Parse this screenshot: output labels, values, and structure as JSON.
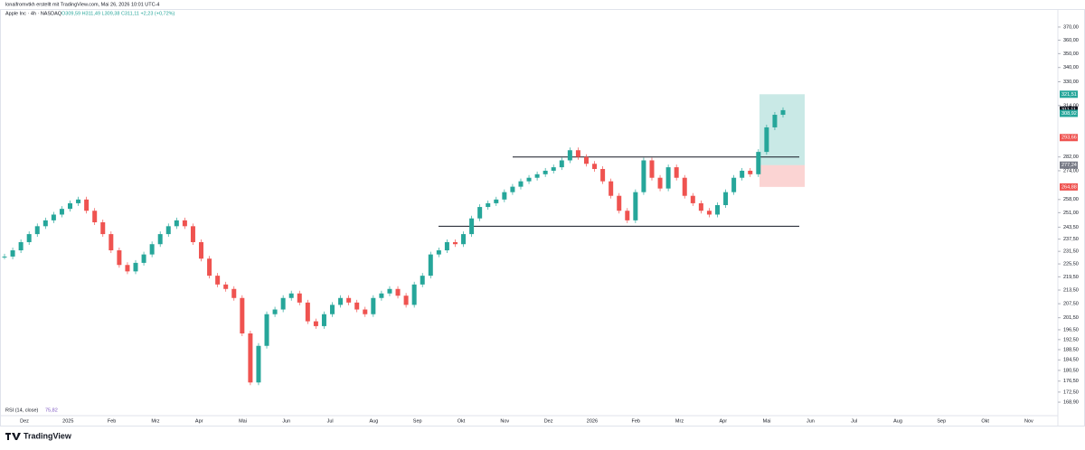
{
  "header": {
    "author": "lonaifromvtkh erstellt mit TradingView.com, Mai 26, 2026 10:01 UTC-4",
    "symbol": "Apple Inc · 4h · NASDAQ",
    "ohlc": "O309,59 H311,49 L309,38 C311,11 +2,23 (+0,72%)"
  },
  "chart_data": {
    "type": "candlestick",
    "log": true,
    "ylim": [
      164.2,
      384.2
    ],
    "yticks": [
      {
        "value": 370,
        "label": "370,00"
      },
      {
        "value": 360,
        "label": "360,00"
      },
      {
        "value": 350,
        "label": "350,00"
      },
      {
        "value": 340,
        "label": "340,00"
      },
      {
        "value": 330,
        "label": "330,00"
      },
      {
        "value": 314,
        "label": "314,00"
      },
      {
        "value": 282,
        "label": "282,00"
      },
      {
        "value": 274,
        "label": "274,00"
      },
      {
        "value": 258,
        "label": "258,00"
      },
      {
        "value": 251,
        "label": "251,00"
      },
      {
        "value": 243.5,
        "label": "243,50"
      },
      {
        "value": 237.5,
        "label": "237,50"
      },
      {
        "value": 231.5,
        "label": "231,50"
      },
      {
        "value": 225.5,
        "label": "225,50"
      },
      {
        "value": 219.5,
        "label": "219,50"
      },
      {
        "value": 213.5,
        "label": "213,50"
      },
      {
        "value": 207.5,
        "label": "207,50"
      },
      {
        "value": 201.5,
        "label": "201,50"
      },
      {
        "value": 196.5,
        "label": "196,50"
      },
      {
        "value": 192.5,
        "label": "192,50"
      },
      {
        "value": 188.5,
        "label": "188,50"
      },
      {
        "value": 184.5,
        "label": "184,50"
      },
      {
        "value": 180.5,
        "label": "180,50"
      },
      {
        "value": 176.5,
        "label": "176,50"
      },
      {
        "value": 172.5,
        "label": "172,50"
      },
      {
        "value": 168.9,
        "label": "168,90"
      }
    ],
    "categories": [
      "Dez",
      "2025",
      "Feb",
      "Mrz",
      "Apr",
      "Mai",
      "Jun",
      "Jul",
      "Aug",
      "Sep",
      "Okt",
      "Nov",
      "Dez",
      "2026",
      "Feb",
      "Mrz",
      "Apr",
      "Mai",
      "Jun",
      "Jul",
      "Aug",
      "Sep",
      "Okt",
      "Nov"
    ],
    "up_color": "#26a69a",
    "down_color": "#ef5350",
    "close": [
      229,
      232,
      236,
      240,
      244,
      247,
      250,
      253,
      256,
      258,
      252,
      246,
      240,
      232,
      225,
      222,
      226,
      230,
      235,
      240,
      244,
      247,
      244,
      236,
      228,
      220,
      216,
      214,
      210,
      195,
      176,
      190,
      203,
      205,
      210,
      212,
      208,
      200,
      198,
      203,
      207,
      210,
      208,
      205,
      203,
      210,
      212,
      214,
      211,
      207,
      216,
      220,
      230,
      232,
      236,
      235,
      240,
      248,
      254,
      256,
      258,
      262,
      265,
      268,
      270,
      272,
      274,
      276,
      280,
      286,
      282,
      278,
      275,
      268,
      260,
      252,
      247,
      262,
      280,
      270,
      264,
      276,
      270,
      260,
      256,
      252,
      250,
      255,
      262,
      270,
      274,
      272,
      285,
      300,
      308,
      311
    ],
    "levels": [
      282,
      244
    ],
    "position": {
      "target": 321.51,
      "entry": 277.24,
      "stop": 264.88
    },
    "price_tags": [
      {
        "value": 321.51,
        "label": "321,51",
        "color": "#26a69a"
      },
      {
        "value": 311.11,
        "label": "311,11",
        "color": "#131722"
      },
      {
        "value": 308.92,
        "label": "308,92",
        "color": "#26a69a"
      },
      {
        "value": 293.66,
        "label": "293,66",
        "color": "#ef5350"
      },
      {
        "value": 277.24,
        "label": "277,24",
        "color": "#787b86"
      },
      {
        "value": 264.88,
        "label": "264,88",
        "color": "#ef5350"
      }
    ],
    "indicator": "RSI (14, close)",
    "indicator_value": "75,82"
  },
  "footer": {
    "brand": "TradingView"
  }
}
